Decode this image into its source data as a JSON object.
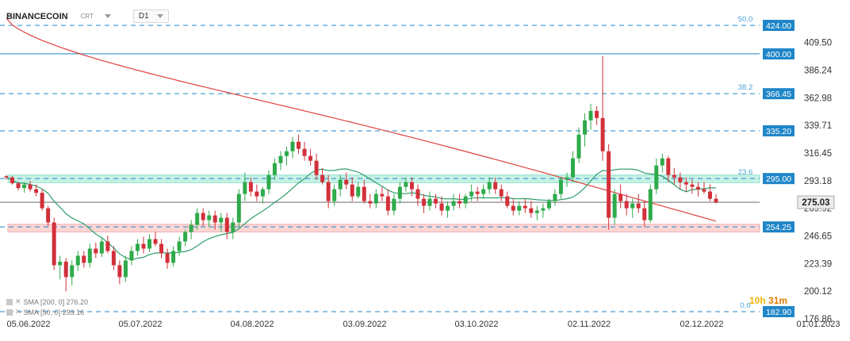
{
  "header": {
    "symbol": "BINANCECOIN",
    "source": "CRT",
    "timeframe": "D1"
  },
  "legend": [
    {
      "label": "SMA [200, 0] 276.20",
      "color": "#e04040"
    },
    {
      "label": "SMA [50, 0] 293.16",
      "color": "#2e9e6a"
    }
  ],
  "timer": {
    "h": "10h",
    "m": "31m"
  },
  "chart_data": {
    "type": "candlestick",
    "title": "",
    "x_labels": [
      "05.06.2022",
      "05.07.2022",
      "04.08.2022",
      "03.09.2022",
      "03.10.2022",
      "02.11.2022",
      "02.12.2022",
      "01.01.2023"
    ],
    "y_ticks": [
      409.5,
      386.24,
      362.98,
      339.71,
      316.45,
      293.18,
      269.92,
      246.65,
      223.39,
      200.12,
      176.86
    ],
    "ylim": [
      176.86,
      432.76
    ],
    "last_price": "275.03",
    "fib_levels": [
      {
        "ratio": "50.0",
        "price": "424.00"
      },
      {
        "ratio": "38.2",
        "price": "366.45"
      },
      {
        "ratio": "23.6",
        "price": "295.00"
      },
      {
        "ratio": "0.0",
        "price": "182.90"
      }
    ],
    "horizontal_levels": [
      {
        "price": "400.00",
        "style": "solid"
      },
      {
        "price": "335.20",
        "style": "dashed"
      },
      {
        "price": "254.25",
        "style": "dashed"
      }
    ],
    "zones": [
      {
        "top": 298,
        "bottom": 291.5,
        "color": "#5fd6b5"
      },
      {
        "top": 256.5,
        "bottom": 250,
        "color": "#f08a8a"
      }
    ],
    "candles": [
      [
        297,
        298,
        294,
        296
      ],
      [
        296,
        297,
        290,
        291
      ],
      [
        291,
        292,
        285,
        287
      ],
      [
        287,
        292,
        283,
        290
      ],
      [
        290,
        293,
        284,
        286
      ],
      [
        286,
        290,
        280,
        283
      ],
      [
        283,
        286,
        268,
        270
      ],
      [
        270,
        272,
        255,
        258
      ],
      [
        258,
        262,
        218,
        222
      ],
      [
        222,
        230,
        210,
        225
      ],
      [
        225,
        228,
        200,
        212
      ],
      [
        212,
        226,
        205,
        222
      ],
      [
        222,
        234,
        217,
        230
      ],
      [
        230,
        234,
        220,
        224
      ],
      [
        224,
        240,
        220,
        236
      ],
      [
        236,
        241,
        228,
        232
      ],
      [
        232,
        246,
        229,
        242
      ],
      [
        242,
        247,
        232,
        234
      ],
      [
        234,
        238,
        218,
        222
      ],
      [
        222,
        226,
        206,
        212
      ],
      [
        212,
        230,
        208,
        226
      ],
      [
        226,
        238,
        222,
        234
      ],
      [
        234,
        244,
        230,
        240
      ],
      [
        240,
        246,
        232,
        236
      ],
      [
        236,
        248,
        233,
        244
      ],
      [
        244,
        250,
        238,
        240
      ],
      [
        240,
        244,
        228,
        232
      ],
      [
        232,
        236,
        219,
        224
      ],
      [
        224,
        238,
        221,
        234
      ],
      [
        234,
        246,
        230,
        242
      ],
      [
        242,
        252,
        238,
        250
      ],
      [
        250,
        260,
        244,
        256
      ],
      [
        256,
        270,
        252,
        266
      ],
      [
        266,
        270,
        255,
        260
      ],
      [
        260,
        268,
        254,
        264
      ],
      [
        264,
        268,
        252,
        258
      ],
      [
        258,
        266,
        250,
        262
      ],
      [
        262,
        266,
        244,
        250
      ],
      [
        250,
        262,
        244,
        258
      ],
      [
        258,
        286,
        254,
        282
      ],
      [
        282,
        300,
        276,
        292
      ],
      [
        292,
        296,
        280,
        284
      ],
      [
        284,
        290,
        276,
        280
      ],
      [
        280,
        288,
        274,
        286
      ],
      [
        286,
        302,
        282,
        298
      ],
      [
        298,
        312,
        294,
        308
      ],
      [
        308,
        318,
        302,
        314
      ],
      [
        314,
        322,
        306,
        318
      ],
      [
        318,
        330,
        312,
        326
      ],
      [
        326,
        332,
        316,
        320
      ],
      [
        320,
        326,
        310,
        314
      ],
      [
        314,
        320,
        306,
        310
      ],
      [
        310,
        316,
        294,
        298
      ],
      [
        298,
        304,
        290,
        292
      ],
      [
        292,
        298,
        270,
        276
      ],
      [
        276,
        290,
        272,
        286
      ],
      [
        286,
        298,
        280,
        294
      ],
      [
        294,
        300,
        286,
        290
      ],
      [
        290,
        296,
        276,
        280
      ],
      [
        280,
        292,
        278,
        288
      ],
      [
        288,
        294,
        274,
        276
      ],
      [
        276,
        282,
        270,
        274
      ],
      [
        274,
        286,
        270,
        282
      ],
      [
        282,
        288,
        276,
        280
      ],
      [
        280,
        286,
        264,
        268
      ],
      [
        268,
        282,
        264,
        278
      ],
      [
        278,
        292,
        274,
        288
      ],
      [
        288,
        296,
        284,
        292
      ],
      [
        292,
        296,
        280,
        286
      ],
      [
        286,
        290,
        272,
        278
      ],
      [
        278,
        282,
        266,
        272
      ],
      [
        272,
        284,
        268,
        278
      ],
      [
        278,
        282,
        270,
        274
      ],
      [
        274,
        280,
        264,
        268
      ],
      [
        268,
        276,
        262,
        272
      ],
      [
        272,
        282,
        268,
        276
      ],
      [
        276,
        282,
        270,
        274
      ],
      [
        274,
        282,
        270,
        280
      ],
      [
        280,
        290,
        276,
        284
      ],
      [
        284,
        288,
        276,
        282
      ],
      [
        282,
        290,
        278,
        286
      ],
      [
        286,
        296,
        282,
        292
      ],
      [
        292,
        296,
        282,
        286
      ],
      [
        286,
        290,
        276,
        280
      ],
      [
        280,
        284,
        270,
        272
      ],
      [
        272,
        278,
        264,
        268
      ],
      [
        268,
        276,
        264,
        272
      ],
      [
        272,
        278,
        266,
        270
      ],
      [
        270,
        276,
        262,
        266
      ],
      [
        266,
        272,
        260,
        268
      ],
      [
        268,
        274,
        262,
        270
      ],
      [
        270,
        278,
        268,
        276
      ],
      [
        276,
        286,
        272,
        282
      ],
      [
        282,
        296,
        278,
        294
      ],
      [
        294,
        300,
        288,
        296
      ],
      [
        296,
        318,
        292,
        312
      ],
      [
        312,
        338,
        308,
        332
      ],
      [
        332,
        350,
        322,
        344
      ],
      [
        344,
        358,
        336,
        352
      ],
      [
        352,
        356,
        340,
        346
      ],
      [
        346,
        398,
        310,
        318
      ],
      [
        318,
        324,
        252,
        262
      ],
      [
        262,
        286,
        256,
        282
      ],
      [
        282,
        290,
        270,
        276
      ],
      [
        276,
        282,
        264,
        270
      ],
      [
        270,
        278,
        262,
        274
      ],
      [
        274,
        282,
        266,
        270
      ],
      [
        270,
        276,
        254,
        260
      ],
      [
        260,
        290,
        258,
        286
      ],
      [
        286,
        312,
        282,
        306
      ],
      [
        306,
        316,
        300,
        312
      ],
      [
        312,
        314,
        292,
        298
      ],
      [
        298,
        304,
        290,
        296
      ],
      [
        296,
        300,
        286,
        292
      ],
      [
        292,
        296,
        284,
        290
      ],
      [
        290,
        294,
        282,
        288
      ],
      [
        288,
        292,
        280,
        286
      ],
      [
        286,
        292,
        282,
        284
      ],
      [
        284,
        290,
        276,
        278
      ],
      [
        278,
        282,
        274,
        275
      ]
    ]
  }
}
